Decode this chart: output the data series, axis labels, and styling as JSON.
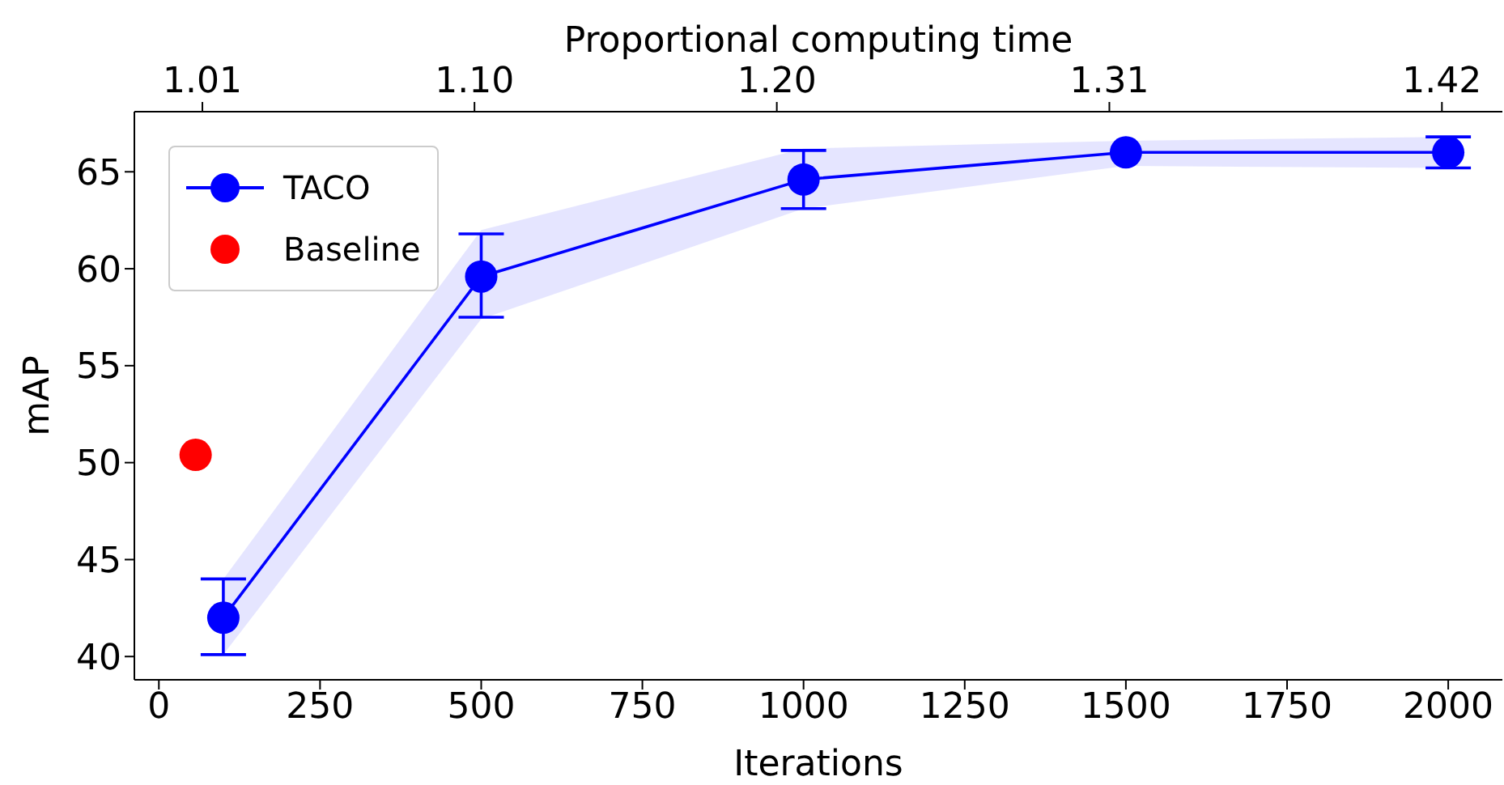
{
  "chart_data": {
    "type": "line",
    "xlabel": "Iterations",
    "ylabel": "mAP",
    "x2label": "Proportional computing time",
    "xlim": [
      -38,
      2084
    ],
    "xticks": [
      0,
      250,
      500,
      750,
      1000,
      1250,
      1500,
      1750,
      2000
    ],
    "x2lim": [
      0.9875,
      1.44
    ],
    "x2ticks": [
      {
        "value": 1.01,
        "label": "1.01"
      },
      {
        "value": 1.1,
        "label": "1.10"
      },
      {
        "value": 1.2,
        "label": "1.20"
      },
      {
        "value": 1.31,
        "label": "1.31"
      },
      {
        "value": 1.42,
        "label": "1.42"
      }
    ],
    "ylim": [
      38.8,
      68.1
    ],
    "yticks": [
      40,
      45,
      50,
      55,
      60,
      65
    ],
    "series": [
      {
        "name": "TACO",
        "color": "#0000ff",
        "x": [
          100,
          500,
          1000,
          1500,
          2000
        ],
        "values": [
          42.0,
          59.6,
          64.6,
          66.0,
          66.0
        ],
        "errors": [
          [
            40.1,
            44.0
          ],
          [
            57.5,
            61.8
          ],
          [
            63.1,
            66.1
          ],
          null,
          [
            65.2,
            66.8
          ]
        ],
        "lower": [
          40.1,
          57.4,
          63.1,
          65.3,
          65.2
        ],
        "upper": [
          44.0,
          62.0,
          66.2,
          66.6,
          66.8
        ]
      },
      {
        "name": "Baseline",
        "type": "scatter",
        "color": "#ff0000",
        "x": [
          57
        ],
        "values": [
          50.4
        ]
      }
    ],
    "marker": "circle",
    "legend": "top left",
    "grid": false
  }
}
